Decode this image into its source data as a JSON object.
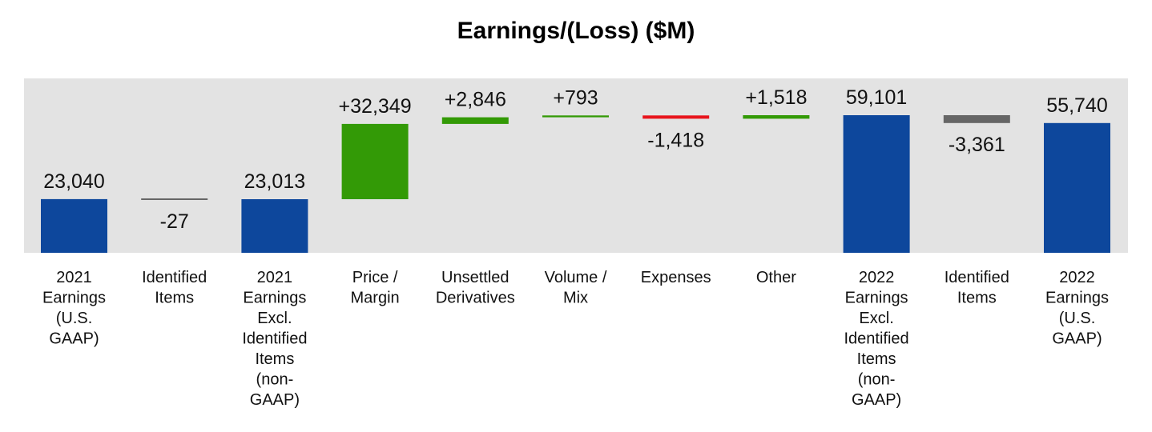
{
  "chart_data": {
    "type": "bar",
    "subtype": "waterfall",
    "title": "Earnings/(Loss) ($M)",
    "xlabel": "",
    "ylabel": "",
    "grid": false,
    "legend": "none",
    "plot_background": "#e3e3e3",
    "colors": {
      "total": "#0d479c",
      "increase": "#339a06",
      "decrease": "#e8141c",
      "identified": "#666666"
    },
    "bars": [
      {
        "category": [
          "2021",
          "Earnings",
          "(U.S.",
          "GAAP)"
        ],
        "kind": "total",
        "value": 23040,
        "label": "23,040"
      },
      {
        "category": [
          "Identified",
          "Items"
        ],
        "kind": "identified",
        "value": -27,
        "label": "-27"
      },
      {
        "category": [
          "2021",
          "Earnings",
          "Excl.",
          "Identified",
          "Items",
          "(non-",
          "GAAP)"
        ],
        "kind": "total",
        "value": 23013,
        "label": "23,013"
      },
      {
        "category": [
          "Price /",
          "Margin"
        ],
        "kind": "increase",
        "value": 32349,
        "label": "+32,349"
      },
      {
        "category": [
          "Unsettled",
          "Derivatives"
        ],
        "kind": "increase",
        "value": 2846,
        "label": "+2,846"
      },
      {
        "category": [
          "Volume /",
          "Mix"
        ],
        "kind": "increase",
        "value": 793,
        "label": "+793"
      },
      {
        "category": [
          "Expenses"
        ],
        "kind": "decrease",
        "value": -1418,
        "label": "-1,418"
      },
      {
        "category": [
          "Other"
        ],
        "kind": "increase",
        "value": 1518,
        "label": "+1,518"
      },
      {
        "category": [
          "2022",
          "Earnings",
          "Excl.",
          "Identified",
          "Items",
          "(non-",
          "GAAP)"
        ],
        "kind": "total",
        "value": 59101,
        "label": "59,101"
      },
      {
        "category": [
          "Identified",
          "Items"
        ],
        "kind": "identified",
        "value": -3361,
        "label": "-3,361"
      },
      {
        "category": [
          "2022",
          "Earnings",
          "(U.S.",
          "GAAP)"
        ],
        "kind": "total",
        "value": 55740,
        "label": "55,740"
      }
    ]
  }
}
